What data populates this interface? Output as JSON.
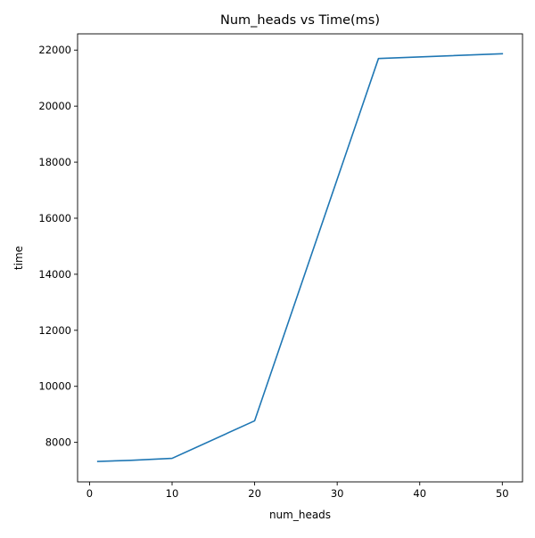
{
  "chart_data": {
    "type": "line",
    "title": "Num_heads vs Time(ms)",
    "xlabel": "num_heads",
    "ylabel": "time",
    "xlim": [
      -1.45,
      52.45
    ],
    "ylim": [
      6590,
      22580
    ],
    "xticks": [
      0,
      10,
      20,
      30,
      40,
      50
    ],
    "yticks": [
      8000,
      10000,
      12000,
      14000,
      16000,
      18000,
      20000,
      22000
    ],
    "grid": false,
    "series": [
      {
        "color": "#1f77b4",
        "x": [
          1,
          5,
          10,
          20,
          35,
          50
        ],
        "y": [
          7320,
          7360,
          7430,
          8770,
          21700,
          21870
        ]
      }
    ]
  }
}
